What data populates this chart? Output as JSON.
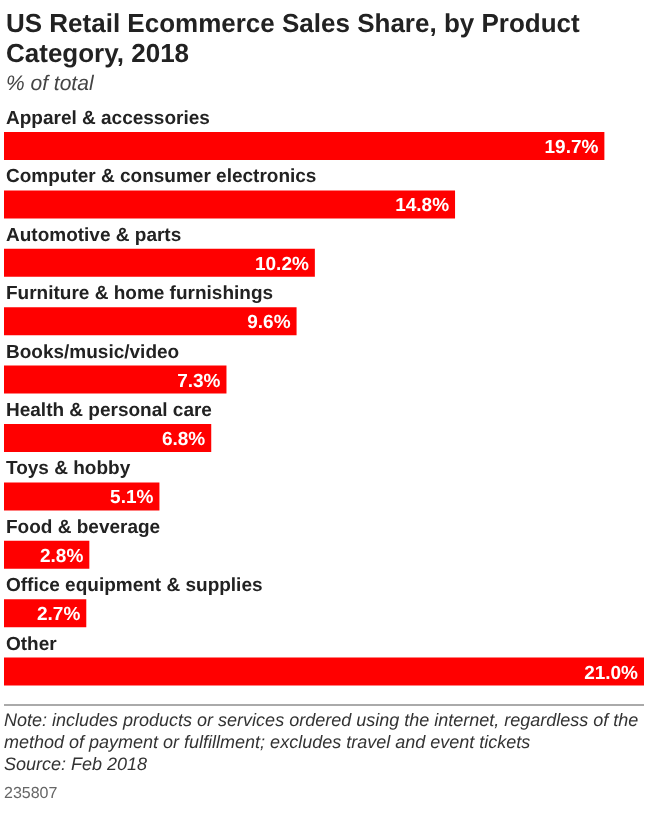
{
  "chart_data": {
    "type": "bar",
    "orientation": "horizontal",
    "title": "US Retail Ecommerce Sales Share, by Product Category, 2018",
    "subtitle": "% of total",
    "categories": [
      "Apparel & accessories",
      "Computer & consumer electronics",
      "Automotive & parts",
      "Furniture & home furnishings",
      "Books/music/video",
      "Health & personal care",
      "Toys & hobby",
      "Food & beverage",
      "Office equipment & supplies",
      "Other"
    ],
    "values": [
      19.7,
      14.8,
      10.2,
      9.6,
      7.3,
      6.8,
      5.1,
      2.8,
      2.7,
      21.0
    ],
    "value_labels": [
      "19.7%",
      "14.8%",
      "10.2%",
      "9.6%",
      "7.3%",
      "6.8%",
      "5.1%",
      "2.8%",
      "2.7%",
      "21.0%"
    ],
    "color": "#ff0000",
    "legend": false,
    "grid": false,
    "annotations": [
      "Note: includes products or services ordered using the internet, regardless of the method of payment or fulfillment; excludes travel and event tickets",
      "Source: Feb 2018",
      "235807"
    ]
  }
}
